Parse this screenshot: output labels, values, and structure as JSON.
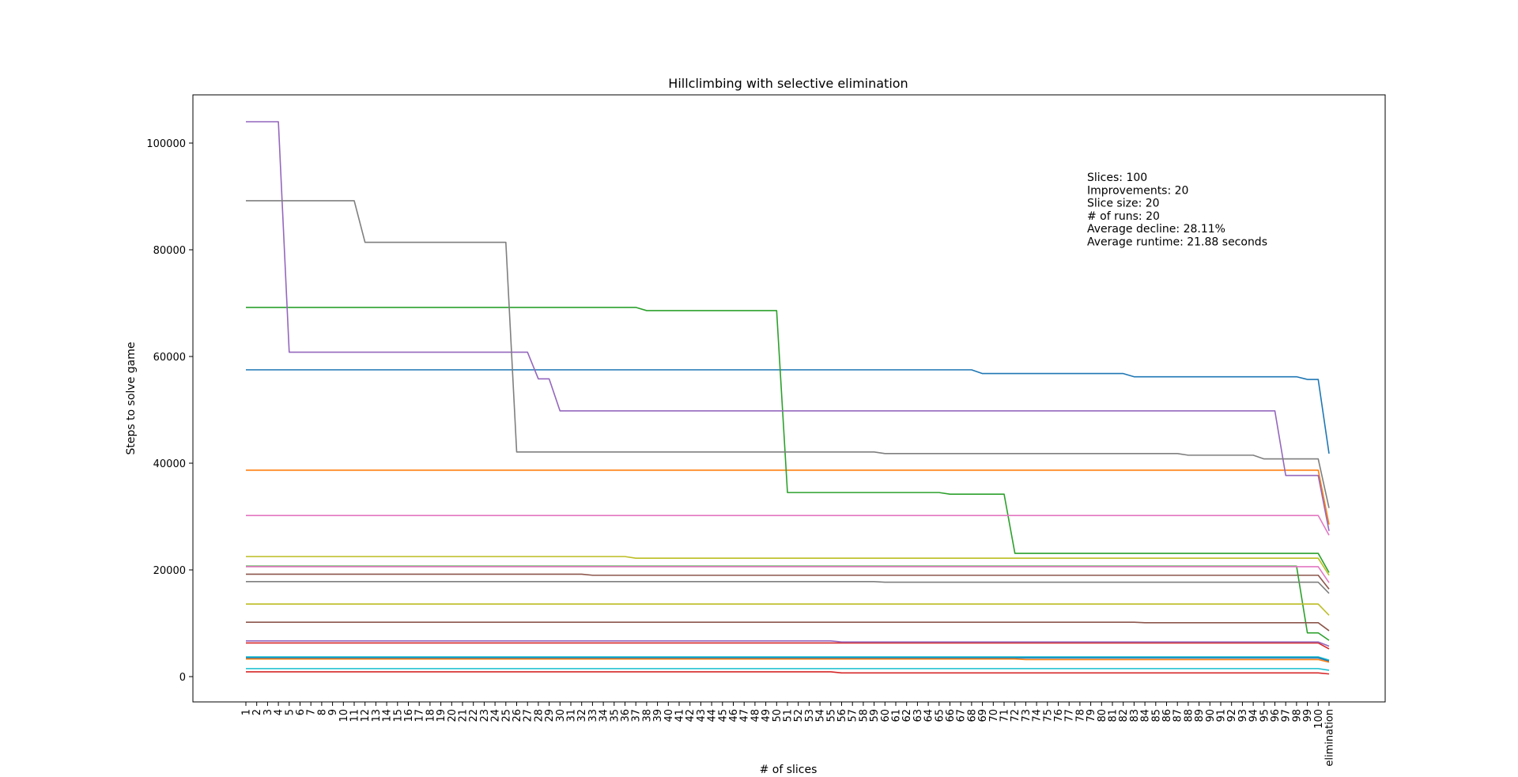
{
  "chart_data": {
    "type": "line",
    "title": "Hillclimbing with selective elimination",
    "xlabel": "# of slices",
    "ylabel": "Steps to solve game",
    "ylim": [
      -4500,
      109000
    ],
    "yticks": [
      0,
      20000,
      40000,
      60000,
      80000,
      100000
    ],
    "ytick_labels": [
      "0",
      "20000",
      "40000",
      "60000",
      "80000",
      "100000"
    ],
    "x_categories": [
      "1",
      "2",
      "3",
      "4",
      "5",
      "6",
      "7",
      "8",
      "9",
      "10",
      "11",
      "12",
      "13",
      "14",
      "15",
      "16",
      "17",
      "18",
      "19",
      "20",
      "21",
      "22",
      "23",
      "24",
      "25",
      "26",
      "27",
      "28",
      "29",
      "30",
      "31",
      "32",
      "33",
      "34",
      "35",
      "36",
      "37",
      "38",
      "39",
      "40",
      "41",
      "42",
      "43",
      "44",
      "45",
      "46",
      "47",
      "48",
      "49",
      "50",
      "51",
      "52",
      "53",
      "54",
      "55",
      "56",
      "57",
      "58",
      "59",
      "60",
      "61",
      "62",
      "63",
      "64",
      "65",
      "66",
      "67",
      "68",
      "69",
      "70",
      "71",
      "72",
      "73",
      "74",
      "75",
      "76",
      "77",
      "78",
      "79",
      "80",
      "81",
      "82",
      "83",
      "84",
      "85",
      "86",
      "87",
      "88",
      "89",
      "90",
      "91",
      "92",
      "93",
      "94",
      "95",
      "96",
      "97",
      "98",
      "99",
      "100",
      "elimination"
    ],
    "grid": false,
    "legend": "none",
    "annotation": [
      "Slices: 100",
      "Improvements: 20",
      "Slice size: 20",
      "# of runs: 20",
      "Average decline: 28.11%",
      "Average runtime: 21.88 seconds"
    ],
    "series": [
      {
        "color": "#1f77b4",
        "start": 57500,
        "steps": [
          [
            69,
            56800
          ],
          [
            83,
            56200
          ],
          [
            99,
            55700
          ]
        ],
        "end": 41800
      },
      {
        "color": "#ff7f0e",
        "start": 38700,
        "steps": [],
        "end": 28500
      },
      {
        "color": "#2ca02c",
        "start": 69200,
        "steps": [
          [
            38,
            68600
          ],
          [
            51,
            34500
          ],
          [
            66,
            34200
          ],
          [
            72,
            23100
          ]
        ],
        "end": 19500
      },
      {
        "color": "#d62728",
        "start": 6300,
        "steps": [],
        "end": 5200
      },
      {
        "color": "#9467bd",
        "start": 104000,
        "steps": [
          [
            5,
            60800
          ],
          [
            28,
            55800
          ],
          [
            30,
            49800
          ],
          [
            97,
            37700
          ]
        ],
        "end": 27300
      },
      {
        "color": "#8c564b",
        "start": 19200,
        "steps": [
          [
            33,
            19000
          ]
        ],
        "end": 16400
      },
      {
        "color": "#e377c2",
        "start": 30200,
        "steps": [],
        "end": 26500
      },
      {
        "color": "#7f7f7f",
        "start": 89200,
        "steps": [
          [
            12,
            81400
          ],
          [
            26,
            42100
          ],
          [
            60,
            41800
          ],
          [
            88,
            41500
          ],
          [
            95,
            40800
          ]
        ],
        "end": 31600
      },
      {
        "color": "#bcbd22",
        "start": 22500,
        "steps": [
          [
            37,
            22200
          ]
        ],
        "end": 19000
      },
      {
        "color": "#17becf",
        "start": 3700,
        "steps": [],
        "end": 3100
      },
      {
        "color": "#1f77b4",
        "start": 3500,
        "steps": [],
        "end": 2900
      },
      {
        "color": "#ff7f0e",
        "start": 3300,
        "steps": [
          [
            73,
            3200
          ]
        ],
        "end": 2700
      },
      {
        "color": "#2ca02c",
        "start": 20700,
        "steps": [
          [
            99,
            8200
          ]
        ],
        "end": 6800
      },
      {
        "color": "#d62728",
        "start": 900,
        "steps": [
          [
            56,
            700
          ]
        ],
        "end": 500
      },
      {
        "color": "#9467bd",
        "start": 6700,
        "steps": [
          [
            56,
            6500
          ]
        ],
        "end": 5700
      },
      {
        "color": "#8c564b",
        "start": 10200,
        "steps": [
          [
            84,
            10100
          ]
        ],
        "end": 8600
      },
      {
        "color": "#e377c2",
        "start": 20600,
        "steps": [],
        "end": 17600
      },
      {
        "color": "#7f7f7f",
        "start": 17800,
        "steps": [
          [
            60,
            17700
          ]
        ],
        "end": 15600
      },
      {
        "color": "#bcbd22",
        "start": 13600,
        "steps": [],
        "end": 11500
      },
      {
        "color": "#17becf",
        "start": 1500,
        "steps": [],
        "end": 1200
      }
    ]
  }
}
